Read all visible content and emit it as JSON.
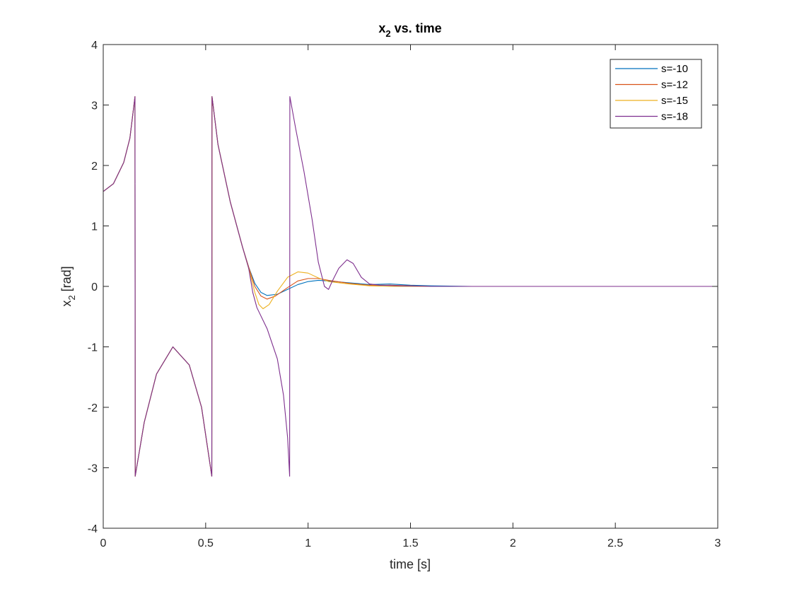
{
  "chart_data": {
    "type": "line",
    "title": "x",
    "title_sub": "2",
    "title_suffix": " vs. time",
    "xlabel": "time [s]",
    "ylabel": "x",
    "ylabel_sub": "2",
    "ylabel_suffix": " [rad]",
    "xlim": [
      0,
      3
    ],
    "ylim": [
      -4,
      4
    ],
    "xticks": [
      0,
      0.5,
      1,
      1.5,
      2,
      2.5,
      3
    ],
    "xtick_labels": [
      "0",
      "0.5",
      "1",
      "1.5",
      "2",
      "2.5",
      "3"
    ],
    "yticks": [
      -4,
      -3,
      -2,
      -1,
      0,
      1,
      2,
      3,
      4
    ],
    "ytick_labels": [
      "-4",
      "-3",
      "-2",
      "-1",
      "0",
      "1",
      "2",
      "3",
      "4"
    ],
    "grid": false,
    "legend_position": "top-right",
    "series": [
      {
        "name": "s=-10",
        "color": "#0072BD",
        "points": [
          [
            0,
            1.57
          ],
          [
            0.05,
            1.7
          ],
          [
            0.1,
            2.05
          ],
          [
            0.13,
            2.45
          ],
          [
            0.155,
            3.14
          ],
          [
            0.156,
            -3.14
          ],
          [
            0.2,
            -2.25
          ],
          [
            0.26,
            -1.45
          ],
          [
            0.34,
            -1.0
          ],
          [
            0.42,
            -1.3
          ],
          [
            0.48,
            -2.0
          ],
          [
            0.53,
            -3.14
          ],
          [
            0.531,
            3.14
          ],
          [
            0.56,
            2.35
          ],
          [
            0.62,
            1.4
          ],
          [
            0.68,
            0.65
          ],
          [
            0.71,
            0.32
          ],
          [
            0.74,
            0.05
          ],
          [
            0.77,
            -0.1
          ],
          [
            0.8,
            -0.15
          ],
          [
            0.85,
            -0.13
          ],
          [
            0.9,
            -0.05
          ],
          [
            0.95,
            0.03
          ],
          [
            1.0,
            0.08
          ],
          [
            1.05,
            0.1
          ],
          [
            1.1,
            0.09
          ],
          [
            1.2,
            0.06
          ],
          [
            1.3,
            0.03
          ],
          [
            1.4,
            0.04
          ],
          [
            1.5,
            0.02
          ],
          [
            1.6,
            0.01
          ],
          [
            1.8,
            0.0
          ],
          [
            2.0,
            0.0
          ],
          [
            3.0,
            0.0
          ]
        ]
      },
      {
        "name": "s=-12",
        "color": "#D95319",
        "points": [
          [
            0,
            1.57
          ],
          [
            0.05,
            1.7
          ],
          [
            0.1,
            2.05
          ],
          [
            0.13,
            2.45
          ],
          [
            0.155,
            3.14
          ],
          [
            0.156,
            -3.14
          ],
          [
            0.2,
            -2.25
          ],
          [
            0.26,
            -1.45
          ],
          [
            0.34,
            -1.0
          ],
          [
            0.42,
            -1.3
          ],
          [
            0.48,
            -2.0
          ],
          [
            0.53,
            -3.14
          ],
          [
            0.531,
            3.14
          ],
          [
            0.56,
            2.35
          ],
          [
            0.62,
            1.4
          ],
          [
            0.68,
            0.65
          ],
          [
            0.71,
            0.32
          ],
          [
            0.74,
            0.0
          ],
          [
            0.77,
            -0.16
          ],
          [
            0.8,
            -0.21
          ],
          [
            0.84,
            -0.16
          ],
          [
            0.9,
            -0.02
          ],
          [
            0.95,
            0.09
          ],
          [
            1.0,
            0.13
          ],
          [
            1.05,
            0.13
          ],
          [
            1.1,
            0.1
          ],
          [
            1.2,
            0.05
          ],
          [
            1.3,
            0.02
          ],
          [
            1.4,
            0.02
          ],
          [
            1.5,
            0.01
          ],
          [
            1.6,
            0.0
          ],
          [
            2.0,
            0.0
          ],
          [
            3.0,
            0.0
          ]
        ]
      },
      {
        "name": "s=-15",
        "color": "#EDB120",
        "points": [
          [
            0,
            1.57
          ],
          [
            0.05,
            1.7
          ],
          [
            0.1,
            2.05
          ],
          [
            0.13,
            2.45
          ],
          [
            0.155,
            3.14
          ],
          [
            0.156,
            -3.14
          ],
          [
            0.2,
            -2.25
          ],
          [
            0.26,
            -1.45
          ],
          [
            0.34,
            -1.0
          ],
          [
            0.42,
            -1.3
          ],
          [
            0.48,
            -2.0
          ],
          [
            0.53,
            -3.14
          ],
          [
            0.531,
            3.14
          ],
          [
            0.56,
            2.35
          ],
          [
            0.62,
            1.4
          ],
          [
            0.68,
            0.65
          ],
          [
            0.71,
            0.3
          ],
          [
            0.74,
            -0.1
          ],
          [
            0.76,
            -0.3
          ],
          [
            0.78,
            -0.37
          ],
          [
            0.81,
            -0.3
          ],
          [
            0.85,
            -0.08
          ],
          [
            0.9,
            0.15
          ],
          [
            0.95,
            0.24
          ],
          [
            1.0,
            0.22
          ],
          [
            1.05,
            0.14
          ],
          [
            1.1,
            0.08
          ],
          [
            1.2,
            0.04
          ],
          [
            1.3,
            0.01
          ],
          [
            1.4,
            0.0
          ],
          [
            1.6,
            0.0
          ],
          [
            2.0,
            0.0
          ],
          [
            3.0,
            0.0
          ]
        ]
      },
      {
        "name": "s=-18",
        "color": "#7E2F8E",
        "points": [
          [
            0,
            1.57
          ],
          [
            0.05,
            1.7
          ],
          [
            0.1,
            2.05
          ],
          [
            0.13,
            2.45
          ],
          [
            0.155,
            3.14
          ],
          [
            0.156,
            -3.14
          ],
          [
            0.2,
            -2.25
          ],
          [
            0.26,
            -1.45
          ],
          [
            0.34,
            -1.0
          ],
          [
            0.42,
            -1.3
          ],
          [
            0.48,
            -2.0
          ],
          [
            0.53,
            -3.14
          ],
          [
            0.531,
            3.14
          ],
          [
            0.56,
            2.35
          ],
          [
            0.62,
            1.4
          ],
          [
            0.68,
            0.65
          ],
          [
            0.71,
            0.3
          ],
          [
            0.73,
            -0.1
          ],
          [
            0.75,
            -0.35
          ],
          [
            0.8,
            -0.7
          ],
          [
            0.85,
            -1.2
          ],
          [
            0.88,
            -1.8
          ],
          [
            0.9,
            -2.5
          ],
          [
            0.91,
            -3.14
          ],
          [
            0.911,
            3.14
          ],
          [
            0.94,
            2.6
          ],
          [
            0.98,
            1.9
          ],
          [
            1.02,
            1.1
          ],
          [
            1.05,
            0.4
          ],
          [
            1.08,
            0.0
          ],
          [
            1.1,
            -0.05
          ],
          [
            1.12,
            0.1
          ],
          [
            1.15,
            0.3
          ],
          [
            1.19,
            0.44
          ],
          [
            1.22,
            0.38
          ],
          [
            1.26,
            0.15
          ],
          [
            1.3,
            0.04
          ],
          [
            1.35,
            0.02
          ],
          [
            1.45,
            0.01
          ],
          [
            1.6,
            0.0
          ],
          [
            2.0,
            0.0
          ],
          [
            3.0,
            0.0
          ]
        ]
      }
    ]
  }
}
